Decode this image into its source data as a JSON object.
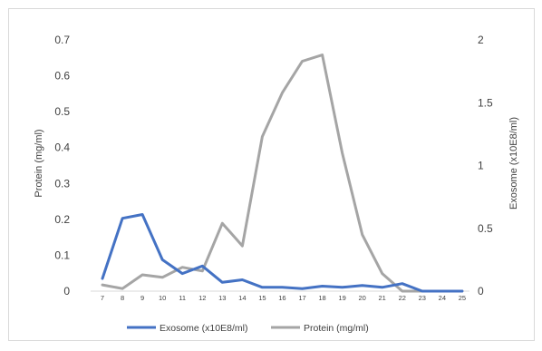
{
  "chart_data": {
    "type": "line",
    "x": [
      "7",
      "8",
      "9",
      "10",
      "11",
      "12",
      "13",
      "14",
      "15",
      "16",
      "17",
      "18",
      "19",
      "20",
      "21",
      "22",
      "23",
      "24",
      "25"
    ],
    "series": [
      {
        "name": "Exosome (x10E8/ml)",
        "axis": "right",
        "color": "#4472c4",
        "values": [
          0.1,
          0.58,
          0.61,
          0.25,
          0.14,
          0.2,
          0.07,
          0.09,
          0.03,
          0.03,
          0.02,
          0.04,
          0.03,
          0.045,
          0.03,
          0.06,
          0,
          0,
          0
        ]
      },
      {
        "name": "Protein (mg/ml)",
        "axis": "left",
        "color": "#a5a5a5",
        "values": [
          0.05,
          0.02,
          0.13,
          0.11,
          0.19,
          0.16,
          0.54,
          0.36,
          1.23,
          1.58,
          1.83,
          1.88,
          1.1,
          0.45,
          0.14,
          0,
          0,
          0,
          0
        ]
      }
    ],
    "y_left": {
      "label": "Protein (mg/ml)",
      "ticks": [
        "0.7",
        "0.6",
        "0.5",
        "0.4",
        "0.3",
        "0.2",
        "0.1",
        "0"
      ]
    },
    "y_right": {
      "label": "Exosome (x10E8/ml)",
      "ticks": [
        "2",
        "1.5",
        "1",
        "0.5",
        "0"
      ],
      "ylim": [
        0,
        2
      ]
    },
    "grid": false,
    "legend": "bottom"
  }
}
